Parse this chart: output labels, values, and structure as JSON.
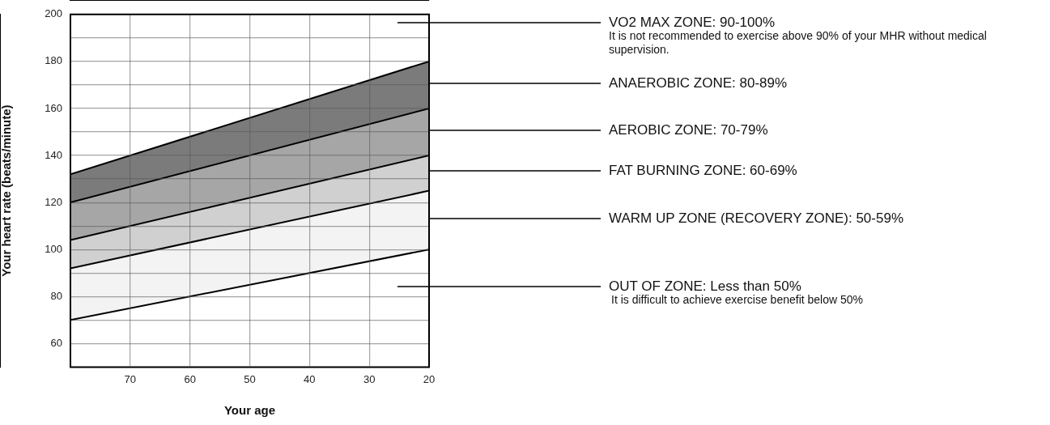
{
  "chart_data": {
    "type": "area",
    "xlabel": "Your age",
    "ylabel": "Your heart rate (beats/minute)",
    "x": [
      80,
      20
    ],
    "xlim": [
      80,
      20
    ],
    "xticks": [
      70,
      60,
      50,
      40,
      30,
      20
    ],
    "ylim": [
      50,
      200
    ],
    "yticks": [
      {
        "value": 50,
        "label": null
      },
      60,
      {
        "value": 70,
        "label": null
      },
      80,
      {
        "value": 90,
        "label": null
      },
      100,
      {
        "value": 110,
        "label": null
      },
      120,
      {
        "value": 130,
        "label": null
      },
      140,
      {
        "value": 150,
        "label": null
      },
      160,
      {
        "value": 170,
        "label": null
      },
      180,
      {
        "value": 190,
        "label": null
      },
      200
    ],
    "grid": true,
    "legend": false,
    "marker": "none",
    "series": [
      {
        "color": "#7b7b7b",
        "values": [
          132,
          180
        ]
      },
      {
        "color": "#a6a6a6",
        "values": [
          120,
          160
        ]
      },
      {
        "color": "#d0d0d0",
        "values": [
          104,
          140
        ]
      },
      {
        "color": "#f3f3f3",
        "values": [
          92,
          125
        ]
      },
      {
        "color": "#ffffff",
        "values": [
          70,
          100
        ]
      }
    ],
    "annotations": [
      "VO2 MAX ZONE: 90-100%",
      "It is not recommended to exercise above 90% of your MHR without medical supervision.",
      "ANAEROBIC ZONE: 80-89%",
      "AEROBIC ZONE: 70-79%",
      "FAT BURNING ZONE: 60-69%",
      "WARM UP ZONE (RECOVERY ZONE): 50-59%",
      "OUT OF ZONE: Less than 50%",
      "It is difficult to achieve exercise benefit below 50%"
    ]
  }
}
